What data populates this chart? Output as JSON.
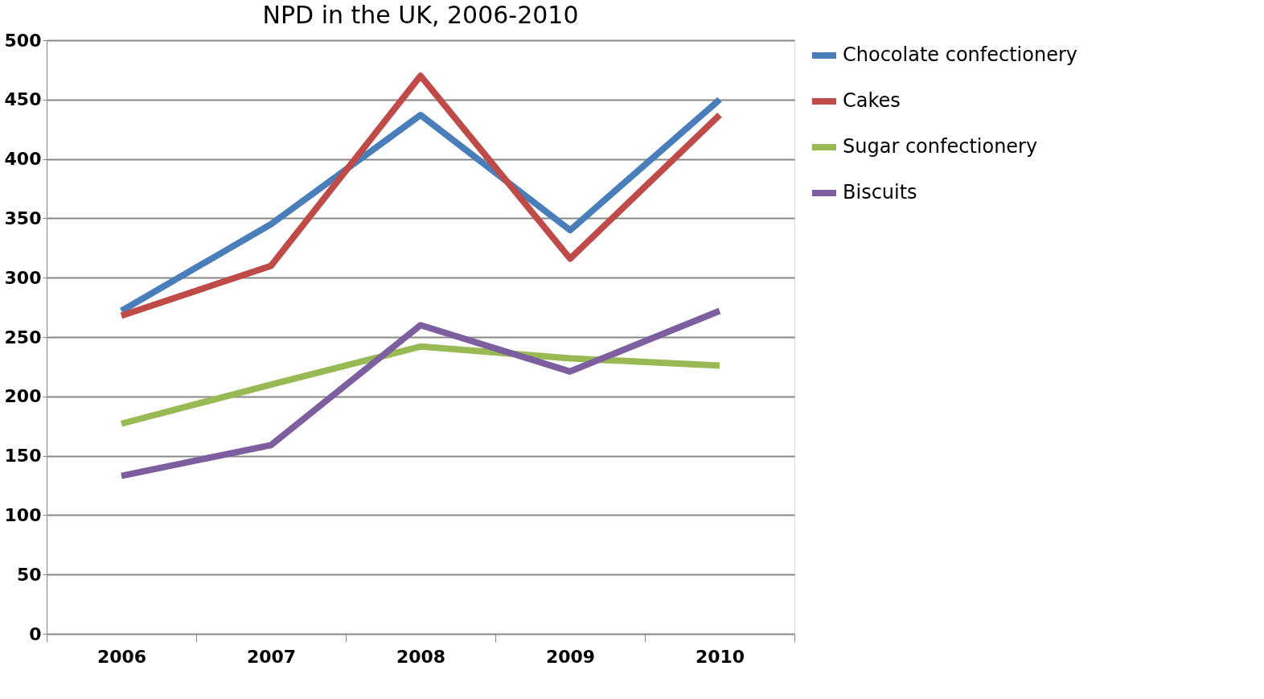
{
  "chart_data": {
    "type": "line",
    "title": "NPD in the UK, 2006-2010",
    "categories": [
      "2006",
      "2007",
      "2008",
      "2009",
      "2010"
    ],
    "series": [
      {
        "name": "Chocolate confectionery",
        "color": "#4a7ebb",
        "values": [
          272,
          345,
          437,
          340,
          450
        ]
      },
      {
        "name": "Cakes",
        "color": "#be4b48",
        "values": [
          268,
          310,
          470,
          316,
          437
        ]
      },
      {
        "name": "Sugar confectionery",
        "color": "#98b954",
        "values": [
          177,
          210,
          242,
          232,
          226
        ]
      },
      {
        "name": "Biscuits",
        "color": "#7d5fa0",
        "values": [
          133,
          159,
          260,
          221,
          272
        ]
      }
    ],
    "ylim": [
      0,
      500
    ],
    "yticks": [
      0,
      50,
      100,
      150,
      200,
      250,
      300,
      350,
      400,
      450,
      500
    ],
    "grid": "y",
    "legend": "right",
    "marker": "none",
    "line_style": "solid"
  }
}
